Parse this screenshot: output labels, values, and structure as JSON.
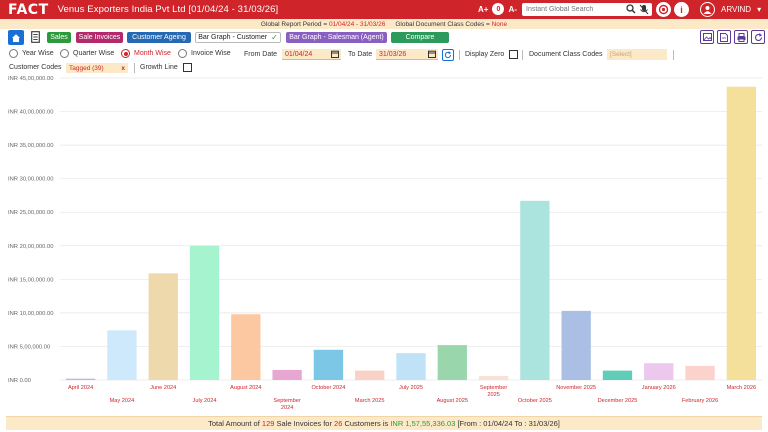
{
  "header": {
    "logo_text": "FACT",
    "company": "Venus Exporters India Pvt Ltd [01/04/24 - 31/03/26]",
    "font_increase": "A+",
    "font_reset": "0",
    "font_decrease": "A-",
    "search_placeholder": "Instant Global Search",
    "user_name": "ARVIND",
    "accent_color": "#d0242b"
  },
  "global_bar": {
    "period_label": "Global Report Period = ",
    "period_value": "01/04/24 - 31/03/26",
    "class_label": "Global Document Class Codes = ",
    "class_value": "None"
  },
  "tabs": {
    "sales": "Sales",
    "sale_invoices": "Sale Invoices",
    "customer_ageing": "Customer Ageing",
    "bar_graph_customer": "Bar Graph - Customer",
    "bar_graph_salesman": "Bar Graph - Salesman (Agent)",
    "compare": "Compare"
  },
  "filters": {
    "year_wise": "Year Wise",
    "quarter_wise": "Quarter Wise",
    "month_wise": "Month Wise",
    "invoice_wise": "Invoice Wise",
    "from_date_label": "From Date",
    "from_date": "01/04/24",
    "to_date_label": "To Date",
    "to_date": "31/03/26",
    "display_zero": "Display Zero",
    "doc_class_label": "Document Class Codes",
    "doc_class_value": "[Select]",
    "customer_codes_label": "Customer Codes",
    "customer_codes_value": "Tagged (39)",
    "customer_codes_clear": "x",
    "growth_line": "Growth Line",
    "selected": "Month Wise"
  },
  "chart_data": {
    "type": "bar",
    "ylim": [
      0,
      4500000
    ],
    "yticks": [
      "INR 0.00",
      "INR 5,00,000.00",
      "INR 10,00,000.00",
      "INR 15,00,000.00",
      "INR 20,00,000.00",
      "INR 25,00,000.00",
      "INR 30,00,000.00",
      "INR 35,00,000.00",
      "INR 40,00,000.00",
      "INR 45,00,000.00"
    ],
    "categories": [
      "April 2024",
      "May 2024",
      "June 2024",
      "July 2024",
      "August 2024",
      "September 2024",
      "October 2024",
      "March 2025",
      "July 2025",
      "August 2025",
      "September 2025",
      "October 2025",
      "November 2025",
      "December 2025",
      "January 2026",
      "February 2026",
      "March 2026"
    ],
    "values": [
      20000,
      740000,
      1590000,
      2000000,
      980000,
      150000,
      450000,
      140000,
      400000,
      520000,
      60000,
      2670000,
      1030000,
      140000,
      250000,
      210000,
      4370000
    ],
    "colors": [
      "#c6b3e3",
      "#cde9fb",
      "#eed9ad",
      "#a5f3cf",
      "#fcc8a1",
      "#e8a7d2",
      "#7dc7e6",
      "#fad1c6",
      "#bfe2f7",
      "#99d6ac",
      "#fae1d6",
      "#abe3de",
      "#aabfe3",
      "#5fcdb8",
      "#ecc8ef",
      "#fbd2cc",
      "#f5e09b"
    ],
    "grid": true,
    "legend": "none"
  },
  "summary": {
    "prefix": "Total Amount of ",
    "invoice_count": "129",
    "mid1": " Sale Invoices for ",
    "customer_count": "26",
    "mid2": " Customers is ",
    "amount": "INR 1,57,55,336.03",
    "range": " [From : 01/04/24 To : 31/03/26]"
  }
}
